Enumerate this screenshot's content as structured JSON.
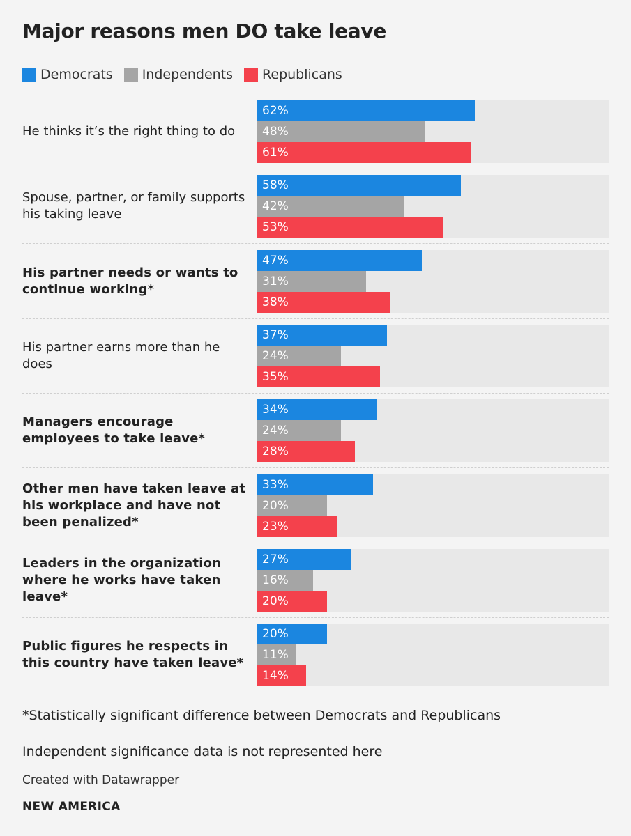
{
  "chart_data": {
    "type": "bar",
    "title": "Major reasons men DO take leave",
    "xlim": [
      0,
      100
    ],
    "legend_position": "top-left",
    "series": [
      {
        "name": "Democrats",
        "color": "#1b86e0"
      },
      {
        "name": "Independents",
        "color": "#a5a5a5"
      },
      {
        "name": "Republicans",
        "color": "#f4414c"
      }
    ],
    "categories": [
      {
        "label": "He thinks it’s the right thing to do",
        "bold": false,
        "values": [
          62,
          48,
          61
        ],
        "value_labels": [
          "62%",
          "48%",
          "61%"
        ]
      },
      {
        "label": "Spouse, partner, or family supports his taking leave",
        "bold": false,
        "values": [
          58,
          42,
          53
        ],
        "value_labels": [
          "58%",
          "42%",
          "53%"
        ]
      },
      {
        "label": "His partner needs or wants to continue working*",
        "bold": true,
        "values": [
          47,
          31,
          38
        ],
        "value_labels": [
          "47%",
          "31%",
          "38%"
        ]
      },
      {
        "label": "His partner earns more than he does",
        "bold": false,
        "values": [
          37,
          24,
          35
        ],
        "value_labels": [
          "37%",
          "24%",
          "35%"
        ]
      },
      {
        "label": "Managers encourage employees to take leave*",
        "bold": true,
        "values": [
          34,
          24,
          28
        ],
        "value_labels": [
          "34%",
          "24%",
          "28%"
        ]
      },
      {
        "label": "Other men have taken leave at his workplace and have not been penalized*",
        "bold": true,
        "values": [
          33,
          20,
          23
        ],
        "value_labels": [
          "33%",
          "20%",
          "23%"
        ]
      },
      {
        "label": "Leaders in the organization where he works have taken leave*",
        "bold": true,
        "values": [
          27,
          16,
          20
        ],
        "value_labels": [
          "27%",
          "16%",
          "20%"
        ]
      },
      {
        "label": "Public figures he respects in this country have taken leave*",
        "bold": true,
        "values": [
          20,
          11,
          14
        ],
        "value_labels": [
          "20%",
          "11%",
          "14%"
        ]
      }
    ]
  },
  "notes": {
    "significance": "*Statistically significant difference between Democrats and Republicans",
    "independent": "Independent significance data is not represented here"
  },
  "footer": {
    "credit": "Created with Datawrapper",
    "brand": "NEW AMERICA"
  }
}
